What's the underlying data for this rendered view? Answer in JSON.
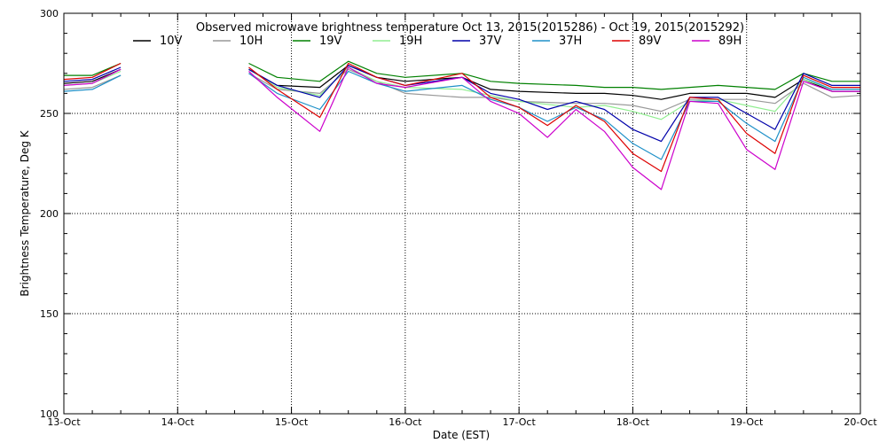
{
  "chart_data": {
    "type": "line",
    "title": "Observed microwave brightness temperature Oct 13, 2015(2015286) - Oct 19, 2015(2015292)",
    "xlabel": "Date (EST)",
    "ylabel": "Brightness Temperature, Deg K",
    "xlim": [
      "2015-10-13 00:00",
      "2015-10-20 00:00"
    ],
    "ylim": [
      100,
      300
    ],
    "yticks": [
      100,
      150,
      200,
      250,
      300
    ],
    "xtick_labels": [
      "13-Oct",
      "14-Oct",
      "15-Oct",
      "16-Oct",
      "17-Oct",
      "18-Oct",
      "19-Oct",
      "20-Oct"
    ],
    "grid": true,
    "legend_position": "top",
    "gap": [
      "2015-10-13 12:00",
      "2015-10-14 15:00"
    ],
    "series": [
      {
        "name": "10V",
        "color": "#000000",
        "points": [
          [
            "2015-10-13 00:00",
            265
          ],
          [
            "2015-10-13 06:00",
            266
          ],
          [
            "2015-10-13 12:00",
            272
          ],
          [
            "2015-10-14 15:00",
            272
          ],
          [
            "2015-10-14 21:00",
            264
          ],
          [
            "2015-10-15 06:00",
            263
          ],
          [
            "2015-10-15 12:00",
            274
          ],
          [
            "2015-10-15 18:00",
            268
          ],
          [
            "2015-10-16 00:00",
            266
          ],
          [
            "2015-10-16 12:00",
            268
          ],
          [
            "2015-10-16 18:00",
            262
          ],
          [
            "2015-10-17 00:00",
            261
          ],
          [
            "2015-10-17 12:00",
            260
          ],
          [
            "2015-10-17 18:00",
            260
          ],
          [
            "2015-10-18 00:00",
            259
          ],
          [
            "2015-10-18 06:00",
            257
          ],
          [
            "2015-10-18 12:00",
            260
          ],
          [
            "2015-10-18 18:00",
            260
          ],
          [
            "2015-10-19 00:00",
            260
          ],
          [
            "2015-10-19 06:00",
            258
          ],
          [
            "2015-10-19 12:00",
            267
          ],
          [
            "2015-10-19 18:00",
            261
          ],
          [
            "2015-10-20 00:00",
            261
          ]
        ]
      },
      {
        "name": "10H",
        "color": "#999999",
        "points": [
          [
            "2015-10-13 00:00",
            262
          ],
          [
            "2015-10-13 06:00",
            263
          ],
          [
            "2015-10-13 12:00",
            269
          ],
          [
            "2015-10-14 15:00",
            270
          ],
          [
            "2015-10-14 21:00",
            262
          ],
          [
            "2015-10-15 06:00",
            260
          ],
          [
            "2015-10-15 12:00",
            272
          ],
          [
            "2015-10-15 18:00",
            266
          ],
          [
            "2015-10-16 00:00",
            260
          ],
          [
            "2015-10-16 12:00",
            258
          ],
          [
            "2015-10-16 18:00",
            258
          ],
          [
            "2015-10-17 00:00",
            256
          ],
          [
            "2015-10-17 12:00",
            255
          ],
          [
            "2015-10-17 18:00",
            255
          ],
          [
            "2015-10-18 00:00",
            254
          ],
          [
            "2015-10-18 06:00",
            251
          ],
          [
            "2015-10-18 12:00",
            257
          ],
          [
            "2015-10-18 18:00",
            257
          ],
          [
            "2015-10-19 00:00",
            257
          ],
          [
            "2015-10-19 06:00",
            255
          ],
          [
            "2015-10-19 12:00",
            265
          ],
          [
            "2015-10-19 18:00",
            258
          ],
          [
            "2015-10-20 00:00",
            259
          ]
        ]
      },
      {
        "name": "19V",
        "color": "#008000",
        "points": [
          [
            "2015-10-13 00:00",
            269
          ],
          [
            "2015-10-13 06:00",
            269
          ],
          [
            "2015-10-13 12:00",
            275
          ],
          [
            "2015-10-14 15:00",
            275
          ],
          [
            "2015-10-14 21:00",
            268
          ],
          [
            "2015-10-15 06:00",
            266
          ],
          [
            "2015-10-15 12:00",
            276
          ],
          [
            "2015-10-15 18:00",
            270
          ],
          [
            "2015-10-16 00:00",
            268
          ],
          [
            "2015-10-16 12:00",
            270
          ],
          [
            "2015-10-16 18:00",
            266
          ],
          [
            "2015-10-17 00:00",
            265
          ],
          [
            "2015-10-17 12:00",
            264
          ],
          [
            "2015-10-17 18:00",
            263
          ],
          [
            "2015-10-18 00:00",
            263
          ],
          [
            "2015-10-18 06:00",
            262
          ],
          [
            "2015-10-18 12:00",
            263
          ],
          [
            "2015-10-18 18:00",
            264
          ],
          [
            "2015-10-19 00:00",
            263
          ],
          [
            "2015-10-19 06:00",
            262
          ],
          [
            "2015-10-19 12:00",
            270
          ],
          [
            "2015-10-19 18:00",
            266
          ],
          [
            "2015-10-20 00:00",
            266
          ]
        ]
      },
      {
        "name": "19H",
        "color": "#90ee90",
        "points": [
          [
            "2015-10-13 00:00",
            264
          ],
          [
            "2015-10-13 06:00",
            265
          ],
          [
            "2015-10-13 12:00",
            271
          ],
          [
            "2015-10-14 15:00",
            272
          ],
          [
            "2015-10-14 21:00",
            263
          ],
          [
            "2015-10-15 06:00",
            259
          ],
          [
            "2015-10-15 12:00",
            273
          ],
          [
            "2015-10-15 18:00",
            266
          ],
          [
            "2015-10-16 00:00",
            263
          ],
          [
            "2015-10-16 12:00",
            262
          ],
          [
            "2015-10-16 18:00",
            259
          ],
          [
            "2015-10-17 00:00",
            256
          ],
          [
            "2015-10-17 12:00",
            253
          ],
          [
            "2015-10-17 18:00",
            254
          ],
          [
            "2015-10-18 00:00",
            251
          ],
          [
            "2015-10-18 06:00",
            247
          ],
          [
            "2015-10-18 12:00",
            256
          ],
          [
            "2015-10-18 18:00",
            257
          ],
          [
            "2015-10-19 00:00",
            254
          ],
          [
            "2015-10-19 06:00",
            251
          ],
          [
            "2015-10-19 12:00",
            267
          ],
          [
            "2015-10-19 18:00",
            262
          ],
          [
            "2015-10-20 00:00",
            262
          ]
        ]
      },
      {
        "name": "37V",
        "color": "#0000aa",
        "points": [
          [
            "2015-10-13 00:00",
            266
          ],
          [
            "2015-10-13 06:00",
            267
          ],
          [
            "2015-10-13 12:00",
            273
          ],
          [
            "2015-10-14 15:00",
            272
          ],
          [
            "2015-10-14 21:00",
            264
          ],
          [
            "2015-10-15 06:00",
            258
          ],
          [
            "2015-10-15 12:00",
            274
          ],
          [
            "2015-10-15 18:00",
            268
          ],
          [
            "2015-10-16 00:00",
            264
          ],
          [
            "2015-10-16 12:00",
            268
          ],
          [
            "2015-10-16 18:00",
            260
          ],
          [
            "2015-10-17 00:00",
            257
          ],
          [
            "2015-10-17 06:00",
            252
          ],
          [
            "2015-10-17 12:00",
            256
          ],
          [
            "2015-10-17 18:00",
            252
          ],
          [
            "2015-10-18 00:00",
            242
          ],
          [
            "2015-10-18 06:00",
            236
          ],
          [
            "2015-10-18 12:00",
            258
          ],
          [
            "2015-10-18 18:00",
            258
          ],
          [
            "2015-10-19 00:00",
            250
          ],
          [
            "2015-10-19 06:00",
            242
          ],
          [
            "2015-10-19 12:00",
            270
          ],
          [
            "2015-10-19 18:00",
            264
          ],
          [
            "2015-10-20 00:00",
            264
          ]
        ]
      },
      {
        "name": "37H",
        "color": "#1e90c8",
        "points": [
          [
            "2015-10-13 00:00",
            261
          ],
          [
            "2015-10-13 06:00",
            262
          ],
          [
            "2015-10-13 12:00",
            269
          ],
          [
            "2015-10-14 15:00",
            270
          ],
          [
            "2015-10-14 21:00",
            260
          ],
          [
            "2015-10-15 06:00",
            252
          ],
          [
            "2015-10-15 12:00",
            271
          ],
          [
            "2015-10-15 18:00",
            265
          ],
          [
            "2015-10-16 00:00",
            261
          ],
          [
            "2015-10-16 12:00",
            264
          ],
          [
            "2015-10-16 18:00",
            257
          ],
          [
            "2015-10-17 00:00",
            253
          ],
          [
            "2015-10-17 06:00",
            246
          ],
          [
            "2015-10-17 12:00",
            253
          ],
          [
            "2015-10-17 18:00",
            247
          ],
          [
            "2015-10-18 00:00",
            235
          ],
          [
            "2015-10-18 06:00",
            227
          ],
          [
            "2015-10-18 12:00",
            256
          ],
          [
            "2015-10-18 18:00",
            256
          ],
          [
            "2015-10-19 00:00",
            245
          ],
          [
            "2015-10-19 06:00",
            236
          ],
          [
            "2015-10-19 12:00",
            268
          ],
          [
            "2015-10-19 18:00",
            262
          ],
          [
            "2015-10-20 00:00",
            262
          ]
        ]
      },
      {
        "name": "89V",
        "color": "#dd0000",
        "points": [
          [
            "2015-10-13 00:00",
            267
          ],
          [
            "2015-10-13 06:00",
            268
          ],
          [
            "2015-10-13 12:00",
            275
          ],
          [
            "2015-10-14 15:00",
            273
          ],
          [
            "2015-10-14 21:00",
            262
          ],
          [
            "2015-10-15 06:00",
            248
          ],
          [
            "2015-10-15 12:00",
            275
          ],
          [
            "2015-10-15 18:00",
            268
          ],
          [
            "2015-10-16 00:00",
            264
          ],
          [
            "2015-10-16 12:00",
            270
          ],
          [
            "2015-10-16 18:00",
            258
          ],
          [
            "2015-10-17 00:00",
            253
          ],
          [
            "2015-10-17 06:00",
            244
          ],
          [
            "2015-10-17 12:00",
            254
          ],
          [
            "2015-10-17 18:00",
            246
          ],
          [
            "2015-10-18 00:00",
            230
          ],
          [
            "2015-10-18 06:00",
            221
          ],
          [
            "2015-10-18 12:00",
            258
          ],
          [
            "2015-10-18 18:00",
            257
          ],
          [
            "2015-10-19 00:00",
            240
          ],
          [
            "2015-10-19 06:00",
            230
          ],
          [
            "2015-10-19 12:00",
            269
          ],
          [
            "2015-10-19 18:00",
            263
          ],
          [
            "2015-10-20 00:00",
            263
          ]
        ]
      },
      {
        "name": "89H",
        "color": "#cc00cc",
        "points": [
          [
            "2015-10-13 00:00",
            264
          ],
          [
            "2015-10-13 06:00",
            265
          ],
          [
            "2015-10-13 12:00",
            272
          ],
          [
            "2015-10-14 15:00",
            271
          ],
          [
            "2015-10-14 21:00",
            258
          ],
          [
            "2015-10-15 06:00",
            241
          ],
          [
            "2015-10-15 12:00",
            273
          ],
          [
            "2015-10-15 18:00",
            265
          ],
          [
            "2015-10-16 00:00",
            263
          ],
          [
            "2015-10-16 12:00",
            268
          ],
          [
            "2015-10-16 18:00",
            256
          ],
          [
            "2015-10-17 00:00",
            250
          ],
          [
            "2015-10-17 06:00",
            238
          ],
          [
            "2015-10-17 12:00",
            252
          ],
          [
            "2015-10-17 18:00",
            241
          ],
          [
            "2015-10-18 00:00",
            223
          ],
          [
            "2015-10-18 06:00",
            212
          ],
          [
            "2015-10-18 12:00",
            256
          ],
          [
            "2015-10-18 18:00",
            255
          ],
          [
            "2015-10-19 00:00",
            232
          ],
          [
            "2015-10-19 06:00",
            222
          ],
          [
            "2015-10-19 12:00",
            266
          ],
          [
            "2015-10-19 18:00",
            261
          ],
          [
            "2015-10-20 00:00",
            261
          ]
        ]
      }
    ]
  }
}
